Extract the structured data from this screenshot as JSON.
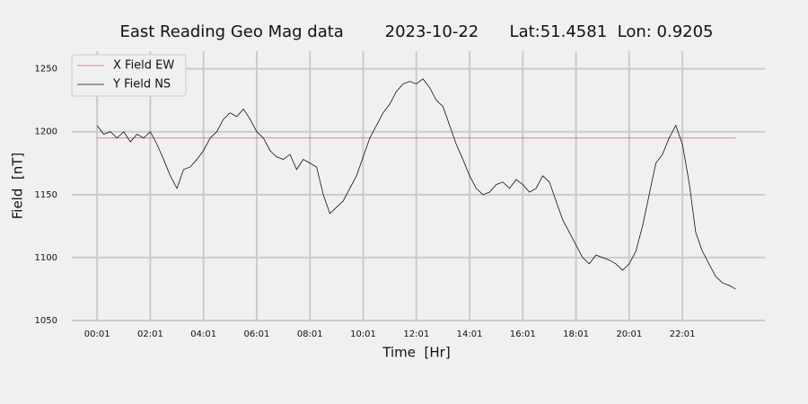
{
  "chart_data": {
    "type": "line",
    "title": "East Reading Geo Mag data        2023-10-22      Lat:51.4581  Lon: 0.9205",
    "x_label": "Time  [Hr]",
    "y_label": "Field  [nT]",
    "xlim": [
      -56,
      1507
    ],
    "ylim": [
      1050,
      1264
    ],
    "xticks": [
      {
        "value": 1,
        "label": "00:01"
      },
      {
        "value": 121,
        "label": "02:01"
      },
      {
        "value": 241,
        "label": "04:01"
      },
      {
        "value": 361,
        "label": "06:01"
      },
      {
        "value": 481,
        "label": "08:01"
      },
      {
        "value": 601,
        "label": "10:01"
      },
      {
        "value": 721,
        "label": "12:01"
      },
      {
        "value": 841,
        "label": "14:01"
      },
      {
        "value": 961,
        "label": "16:01"
      },
      {
        "value": 1081,
        "label": "18:01"
      },
      {
        "value": 1201,
        "label": "20:01"
      },
      {
        "value": 1321,
        "label": "22:01"
      }
    ],
    "yticks": [
      1050,
      1100,
      1150,
      1200,
      1250
    ],
    "grid": true,
    "legend": "upper left",
    "series": [
      {
        "name": "X Field EW",
        "color": "#e06060",
        "x": [
          1,
          1441
        ],
        "values": [
          1195,
          1195
        ]
      },
      {
        "name": "Y Field NS",
        "color": "#111111",
        "x": [
          1,
          16,
          31,
          46,
          61,
          76,
          91,
          106,
          121,
          136,
          151,
          166,
          181,
          196,
          211,
          226,
          241,
          256,
          271,
          286,
          301,
          316,
          331,
          346,
          361,
          376,
          391,
          406,
          421,
          436,
          451,
          466,
          481,
          496,
          511,
          526,
          541,
          556,
          571,
          586,
          601,
          616,
          631,
          646,
          661,
          676,
          691,
          706,
          721,
          736,
          751,
          766,
          781,
          796,
          811,
          826,
          841,
          856,
          871,
          886,
          901,
          916,
          931,
          946,
          961,
          976,
          991,
          1006,
          1021,
          1036,
          1051,
          1066,
          1081,
          1096,
          1111,
          1126,
          1141,
          1156,
          1171,
          1186,
          1201,
          1216,
          1231,
          1246,
          1261,
          1276,
          1291,
          1306,
          1321,
          1336,
          1351,
          1366,
          1381,
          1396,
          1411,
          1426,
          1441
        ],
        "values": [
          1205,
          1198,
          1200,
          1195,
          1200,
          1192,
          1198,
          1195,
          1200,
          1190,
          1178,
          1165,
          1155,
          1170,
          1172,
          1178,
          1185,
          1195,
          1200,
          1210,
          1215,
          1212,
          1218,
          1210,
          1200,
          1195,
          1185,
          1180,
          1178,
          1182,
          1170,
          1178,
          1175,
          1172,
          1150,
          1135,
          1140,
          1145,
          1155,
          1165,
          1180,
          1195,
          1205,
          1215,
          1222,
          1232,
          1238,
          1240,
          1238,
          1242,
          1235,
          1225,
          1220,
          1205,
          1190,
          1178,
          1165,
          1155,
          1150,
          1152,
          1158,
          1160,
          1155,
          1162,
          1158,
          1152,
          1155,
          1165,
          1160,
          1145,
          1130,
          1120,
          1110,
          1100,
          1095,
          1102,
          1100,
          1098,
          1095,
          1090,
          1095,
          1105,
          1125,
          1150,
          1175,
          1182,
          1195,
          1205,
          1190,
          1160,
          1120,
          1105,
          1095,
          1085,
          1080,
          1078,
          1075
        ]
      }
    ]
  }
}
